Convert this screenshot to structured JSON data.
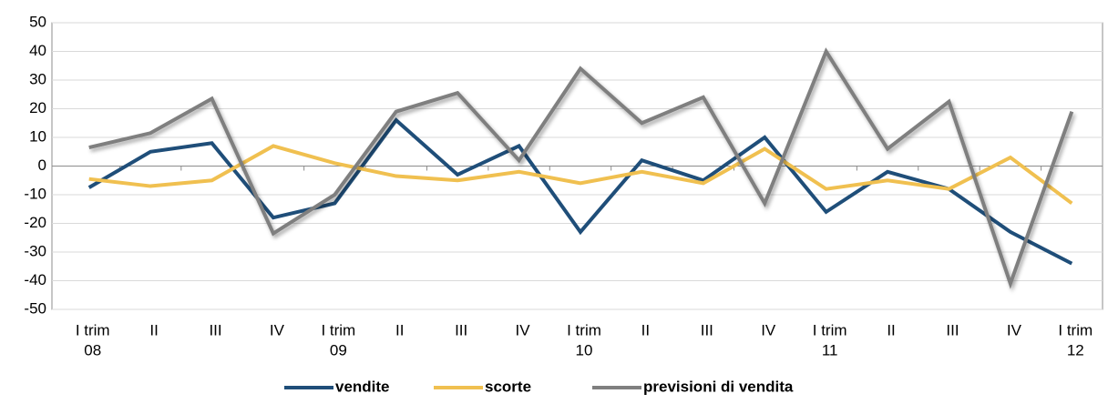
{
  "chart_data": {
    "type": "line",
    "categories": [
      [
        "I trim",
        "08"
      ],
      [
        "II"
      ],
      [
        "III"
      ],
      [
        "IV"
      ],
      [
        "I trim",
        "09"
      ],
      [
        "II"
      ],
      [
        "III"
      ],
      [
        "IV"
      ],
      [
        "I trim",
        "10"
      ],
      [
        "II"
      ],
      [
        "III"
      ],
      [
        "IV"
      ],
      [
        "I trim",
        "11"
      ],
      [
        "II"
      ],
      [
        "III"
      ],
      [
        "IV"
      ],
      [
        "I trim",
        "12"
      ]
    ],
    "series": [
      {
        "name": "vendite",
        "color": "#1f4e79",
        "values": [
          -7.5,
          5,
          8,
          -18,
          -13,
          16,
          -3,
          7,
          -23,
          2,
          -5,
          10,
          -16,
          -2,
          -8,
          -23,
          -34
        ]
      },
      {
        "name": "scorte",
        "color": "#f0c050",
        "values": [
          -4.5,
          -7,
          -5,
          7,
          1,
          -3.5,
          -5,
          -2,
          -6,
          -2,
          -6,
          6,
          -8,
          -5,
          -8,
          3,
          -13
        ]
      },
      {
        "name": "previsioni di vendita",
        "color": "#7f7f7f",
        "values": [
          6.5,
          11.5,
          23.5,
          -23.5,
          -10,
          19,
          25.5,
          2,
          34,
          15,
          24,
          -13,
          40,
          6,
          22.5,
          -41,
          19
        ]
      }
    ],
    "ylim": [
      -50,
      50
    ],
    "yticks": [
      -50,
      -40,
      -30,
      -20,
      -10,
      0,
      10,
      20,
      30,
      40,
      50
    ],
    "grid": true,
    "legend": "bottom"
  }
}
